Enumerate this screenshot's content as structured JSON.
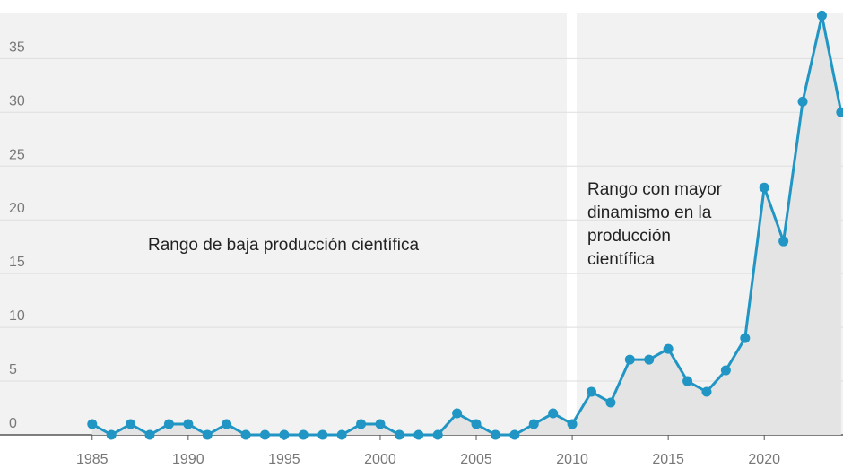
{
  "chart_data": {
    "type": "line",
    "x": [
      1985,
      1986,
      1987,
      1988,
      1989,
      1990,
      1991,
      1992,
      1993,
      1994,
      1995,
      1996,
      1997,
      1998,
      1999,
      2000,
      2001,
      2002,
      2003,
      2004,
      2005,
      2006,
      2007,
      2008,
      2009,
      2010,
      2011,
      2012,
      2013,
      2014,
      2015,
      2016,
      2017,
      2018,
      2019,
      2020,
      2021,
      2022,
      2023,
      2024
    ],
    "series": [
      {
        "color": "#2196c4",
        "values": [
          1,
          0,
          1,
          0,
          1,
          1,
          0,
          1,
          0,
          0,
          0,
          0,
          0,
          0,
          1,
          1,
          0,
          0,
          0,
          2,
          1,
          0,
          0,
          1,
          2,
          1,
          4,
          3,
          7,
          7,
          8,
          5,
          4,
          6,
          9,
          23,
          18,
          31,
          39,
          30
        ]
      }
    ],
    "xlim": [
      1980.2,
      2024.1
    ],
    "ylim": [
      0,
      39.2
    ],
    "xticks": [
      1985,
      1990,
      1995,
      2000,
      2005,
      2010,
      2015,
      2020
    ],
    "yticks": [
      0,
      5,
      10,
      15,
      20,
      25,
      30,
      35
    ],
    "grid": true,
    "annotations": [
      {
        "lines": [
          "Rango de baja producción científica"
        ]
      },
      {
        "lines": [
          "Rango con mayor",
          "dinamismo en la",
          "producción",
          "científica"
        ]
      }
    ]
  }
}
